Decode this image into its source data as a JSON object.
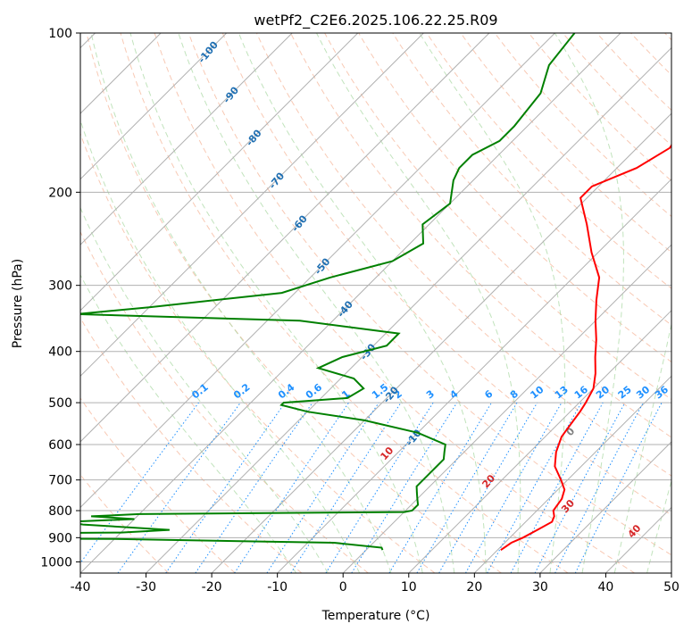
{
  "chart_data": {
    "type": "skew-t",
    "title": "wetPf2_C2E6.2025.106.22.25.R09",
    "xlabel": "Temperature (°C)",
    "ylabel": "Pressure (hPa)",
    "xlim": [
      -40,
      50
    ],
    "ylim": [
      1050,
      100
    ],
    "y_scale": "log",
    "x_ticks": [
      "-40",
      "-30",
      "-20",
      "-10",
      "0",
      "10",
      "20",
      "30",
      "40",
      "50"
    ],
    "y_ticks": [
      "100",
      "200",
      "300",
      "400",
      "500",
      "600",
      "700",
      "800",
      "900",
      "1000"
    ],
    "grid": true,
    "series": [
      {
        "key": "temperature",
        "color": "#ff0000",
        "points": [
          [
            950,
            20.5
          ],
          [
            920,
            21
          ],
          [
            900,
            22
          ],
          [
            870,
            23
          ],
          [
            840,
            24
          ],
          [
            820,
            23.5
          ],
          [
            800,
            22.5
          ],
          [
            760,
            22
          ],
          [
            730,
            21
          ],
          [
            700,
            19
          ],
          [
            660,
            16
          ],
          [
            620,
            14
          ],
          [
            580,
            12.5
          ],
          [
            550,
            12
          ],
          [
            520,
            11.5
          ],
          [
            500,
            11
          ],
          [
            470,
            10
          ],
          [
            440,
            8
          ],
          [
            410,
            5.5
          ],
          [
            380,
            3
          ],
          [
            350,
            0
          ],
          [
            320,
            -3
          ],
          [
            290,
            -6
          ],
          [
            260,
            -11
          ],
          [
            230,
            -16
          ],
          [
            205,
            -21
          ],
          [
            195,
            -21
          ],
          [
            180,
            -17
          ],
          [
            165,
            -15
          ],
          [
            150,
            -16
          ],
          [
            130,
            -18
          ],
          [
            115,
            -20
          ],
          [
            105,
            -21
          ],
          [
            100,
            -20
          ]
        ]
      },
      {
        "key": "dewpoint",
        "color": "#008000",
        "points": [
          [
            950,
            2.5
          ],
          [
            940,
            2
          ],
          [
            920,
            -6
          ],
          [
            905,
            -40
          ],
          [
            900,
            -85
          ],
          [
            890,
            -95
          ],
          [
            880,
            -40
          ],
          [
            870,
            -33
          ],
          [
            860,
            -40
          ],
          [
            850,
            -47
          ],
          [
            840,
            -50
          ],
          [
            830,
            -40
          ],
          [
            820,
            -47
          ],
          [
            812,
            -40
          ],
          [
            805,
            0
          ],
          [
            800,
            1
          ],
          [
            780,
            1
          ],
          [
            760,
            0
          ],
          [
            740,
            -1
          ],
          [
            720,
            -2
          ],
          [
            700,
            -2
          ],
          [
            680,
            -2
          ],
          [
            660,
            -2
          ],
          [
            640,
            -2
          ],
          [
            620,
            -3
          ],
          [
            600,
            -4
          ],
          [
            570,
            -10
          ],
          [
            540,
            -20
          ],
          [
            520,
            -30
          ],
          [
            505,
            -35
          ],
          [
            500,
            -35
          ],
          [
            490,
            -26
          ],
          [
            470,
            -25
          ],
          [
            450,
            -28
          ],
          [
            430,
            -35
          ],
          [
            410,
            -33
          ],
          [
            390,
            -28
          ],
          [
            370,
            -28
          ],
          [
            350,
            -45
          ],
          [
            340,
            -80
          ],
          [
            330,
            -70
          ],
          [
            310,
            -52
          ],
          [
            290,
            -47
          ],
          [
            270,
            -40
          ],
          [
            250,
            -38
          ],
          [
            230,
            -41
          ],
          [
            210,
            -40
          ],
          [
            190,
            -43
          ],
          [
            180,
            -44
          ],
          [
            170,
            -44
          ],
          [
            160,
            -42
          ],
          [
            150,
            -42
          ],
          [
            130,
            -43
          ],
          [
            115,
            -46
          ],
          [
            100,
            -47
          ]
        ]
      }
    ],
    "mixing_ratio_labels": [
      "0.1",
      "0.2",
      "0.4",
      "0.6",
      "1",
      "1.5",
      "2",
      "3",
      "4",
      "6",
      "8",
      "10",
      "13",
      "16",
      "20",
      "25",
      "30",
      "36"
    ],
    "dry_adiabat_labels": [
      "-100",
      "-90",
      "-80",
      "-70",
      "-60",
      "-50",
      "-40",
      "-30",
      "-20",
      "-10"
    ],
    "moist_adiabat_labels": [
      "10",
      "20",
      "30",
      "40"
    ],
    "zero_label": "0",
    "line_colors": {
      "isotherm": "#b0b0b0",
      "isobar": "#b0b0b0",
      "dry_adiabat": "#f4a582",
      "moist_adiabat": "#a6d7a0",
      "mixing_ratio": "#1e90ff",
      "cutoff": "#c8b89a"
    }
  }
}
